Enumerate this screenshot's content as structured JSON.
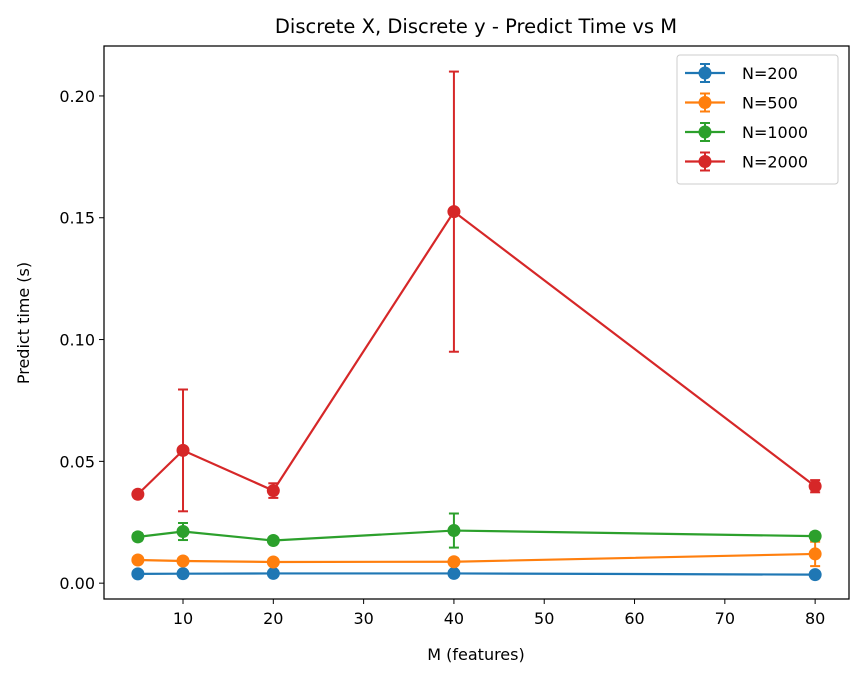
{
  "chart_data": {
    "type": "line",
    "title": "Discrete X, Discrete y - Predict Time vs M",
    "xlabel": "M (features)",
    "ylabel": "Predict time (s)",
    "xlim": [
      1.25,
      83.75
    ],
    "ylim": [
      -0.0065,
      0.2205
    ],
    "xticks": [
      10,
      20,
      30,
      40,
      50,
      60,
      70,
      80
    ],
    "xtick_labels": [
      "10",
      "20",
      "30",
      "40",
      "50",
      "60",
      "70",
      "80"
    ],
    "yticks": [
      0.0,
      0.05,
      0.1,
      0.15,
      0.2
    ],
    "ytick_labels": [
      "0.00",
      "0.05",
      "0.10",
      "0.15",
      "0.20"
    ],
    "grid": false,
    "legend_position": "top-right",
    "x": [
      5,
      10,
      20,
      40,
      80
    ],
    "series": [
      {
        "name": "N=200",
        "color": "#1f77b4",
        "values": [
          0.0038,
          0.0039,
          0.004,
          0.004,
          0.0035
        ],
        "errors": [
          0.0004,
          0.0004,
          0.0004,
          0.0004,
          0.0004
        ]
      },
      {
        "name": "N=500",
        "color": "#ff7f0e",
        "values": [
          0.0095,
          0.0091,
          0.0087,
          0.0088,
          0.012
        ],
        "errors": [
          0.0007,
          0.0007,
          0.0006,
          0.0007,
          0.005
        ]
      },
      {
        "name": "N=1000",
        "color": "#2ca02c",
        "values": [
          0.019,
          0.0212,
          0.0175,
          0.0216,
          0.0193
        ],
        "errors": [
          0.0015,
          0.0035,
          0.0012,
          0.007,
          0.0015
        ]
      },
      {
        "name": "N=2000",
        "color": "#d62728",
        "values": [
          0.0365,
          0.0545,
          0.038,
          0.1525,
          0.0398
        ],
        "errors": [
          0.001,
          0.025,
          0.003,
          0.0575,
          0.0025
        ]
      }
    ]
  }
}
